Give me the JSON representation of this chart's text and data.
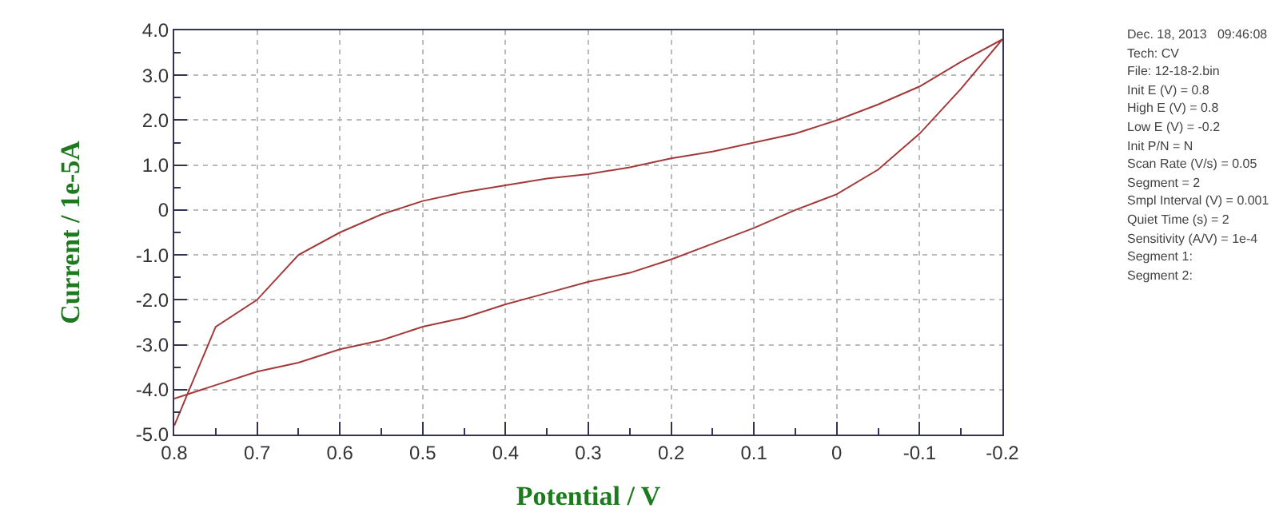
{
  "chart_data": {
    "type": "line",
    "xlabel": "Potential / V",
    "ylabel": "Current / 1e-5A",
    "x": [
      0.8,
      0.75,
      0.7,
      0.65,
      0.6,
      0.55,
      0.5,
      0.45,
      0.4,
      0.35,
      0.3,
      0.25,
      0.2,
      0.15,
      0.1,
      0.05,
      0,
      -0.05,
      -0.1,
      -0.15,
      -0.2,
      -0.15,
      -0.1,
      -0.05,
      0,
      0.05,
      0.1,
      0.15,
      0.2,
      0.25,
      0.3,
      0.35,
      0.4,
      0.45,
      0.5,
      0.55,
      0.6,
      0.65,
      0.7,
      0.75,
      0.8
    ],
    "series": [
      {
        "color": "#a33a3a",
        "values": [
          -4.2,
          -3.9,
          -3.6,
          -3.4,
          -3.1,
          -2.9,
          -2.6,
          -2.4,
          -2.1,
          -1.85,
          -1.6,
          -1.4,
          -1.1,
          -0.75,
          -0.4,
          0.0,
          0.35,
          0.9,
          1.7,
          2.7,
          3.8,
          3.3,
          2.75,
          2.35,
          2.0,
          1.7,
          1.5,
          1.3,
          1.15,
          0.95,
          0.8,
          0.7,
          0.55,
          0.4,
          0.2,
          -0.1,
          -0.5,
          -1.0,
          -2.0,
          -2.6,
          -4.8
        ]
      }
    ],
    "xlim": [
      0.8,
      -0.2
    ],
    "xticks": [
      0.8,
      0.7,
      0.6,
      0.5,
      0.4,
      0.3,
      0.2,
      0.1,
      0,
      -0.1,
      -0.2
    ],
    "ylim": [
      -5.0,
      4.0
    ],
    "yticks": [
      {
        "value": 4,
        "label": "4.0"
      },
      {
        "value": 3,
        "label": "3.0"
      },
      {
        "value": 2,
        "label": "2.0"
      },
      {
        "value": 1,
        "label": "1.0"
      },
      0,
      {
        "value": -1,
        "label": "-1.0"
      },
      {
        "value": -2,
        "label": "-2.0"
      },
      {
        "value": -3,
        "label": "-3.0"
      },
      {
        "value": -4,
        "label": "-4.0"
      },
      {
        "value": -5,
        "label": "-5.0"
      }
    ],
    "grid": true,
    "marker": "none",
    "line_style": "solid",
    "annotations": [
      "Dec. 18, 2013   09:46:08",
      "Tech: CV",
      "File: 12-18-2.bin",
      "Init E (V) = 0.8",
      "High E (V) = 0.8",
      "Low E (V) = -0.2",
      "Init P/N = N",
      "Scan Rate (V/s) = 0.05",
      "Segment = 2",
      "Smpl Interval (V) = 0.001",
      "Quiet Time (s) = 2",
      "Sensitivity (A/V) = 1e-4",
      "Segment 1:",
      "Segment 2:"
    ]
  }
}
